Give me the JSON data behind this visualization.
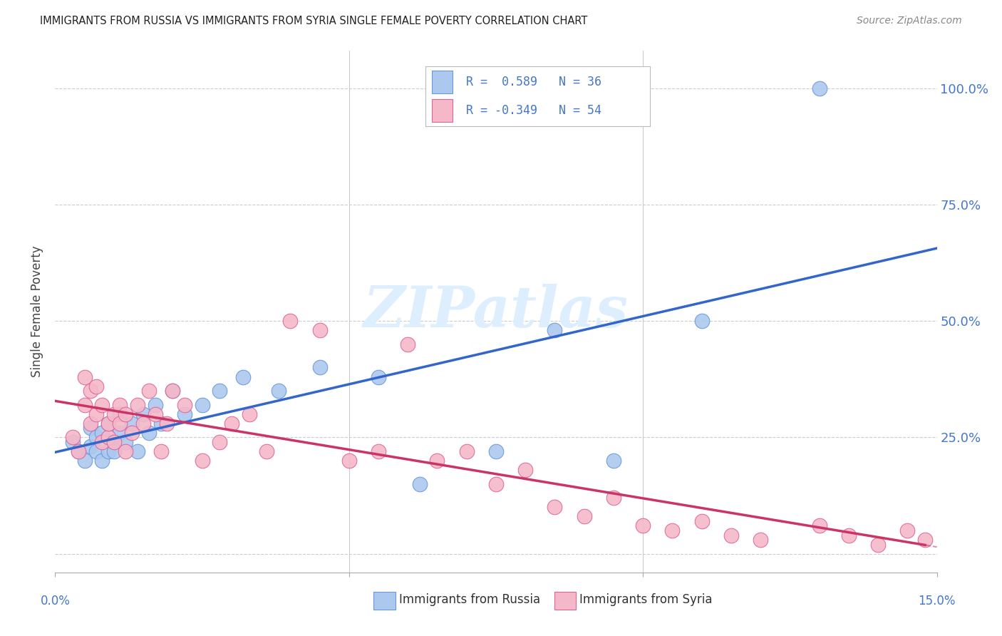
{
  "title": "IMMIGRANTS FROM RUSSIA VS IMMIGRANTS FROM SYRIA SINGLE FEMALE POVERTY CORRELATION CHART",
  "source": "Source: ZipAtlas.com",
  "ylabel": "Single Female Poverty",
  "x_range": [
    0.0,
    0.15
  ],
  "y_range": [
    -0.04,
    1.08
  ],
  "russia_R": 0.589,
  "russia_N": 36,
  "syria_R": -0.349,
  "syria_N": 54,
  "russia_color": "#adc8ee",
  "russia_line_color": "#3366cc",
  "russia_edge_color": "#6699dd",
  "syria_color": "#f5b8c8",
  "syria_line_color": "#cc3366",
  "syria_edge_color": "#dd6699",
  "watermark_color": "#ddeeff",
  "background_color": "#ffffff",
  "grid_color": "#cccccc",
  "label_color": "#4477cc",
  "russia_x": [
    0.003,
    0.004,
    0.005,
    0.006,
    0.006,
    0.007,
    0.007,
    0.008,
    0.008,
    0.009,
    0.009,
    0.01,
    0.01,
    0.011,
    0.011,
    0.012,
    0.013,
    0.014,
    0.015,
    0.016,
    0.017,
    0.018,
    0.02,
    0.022,
    0.025,
    0.028,
    0.032,
    0.038,
    0.045,
    0.055,
    0.062,
    0.075,
    0.085,
    0.095,
    0.11,
    0.13
  ],
  "russia_y": [
    0.24,
    0.22,
    0.2,
    0.23,
    0.27,
    0.22,
    0.25,
    0.2,
    0.26,
    0.22,
    0.28,
    0.24,
    0.22,
    0.26,
    0.3,
    0.24,
    0.28,
    0.22,
    0.3,
    0.26,
    0.32,
    0.28,
    0.35,
    0.3,
    0.32,
    0.35,
    0.38,
    0.35,
    0.4,
    0.38,
    0.15,
    0.22,
    0.48,
    0.2,
    0.5,
    1.0
  ],
  "syria_x": [
    0.003,
    0.004,
    0.005,
    0.005,
    0.006,
    0.006,
    0.007,
    0.007,
    0.008,
    0.008,
    0.009,
    0.009,
    0.01,
    0.01,
    0.011,
    0.011,
    0.012,
    0.012,
    0.013,
    0.014,
    0.015,
    0.016,
    0.017,
    0.018,
    0.019,
    0.02,
    0.022,
    0.025,
    0.028,
    0.03,
    0.033,
    0.036,
    0.04,
    0.045,
    0.05,
    0.055,
    0.06,
    0.065,
    0.07,
    0.075,
    0.08,
    0.085,
    0.09,
    0.095,
    0.1,
    0.105,
    0.11,
    0.115,
    0.12,
    0.13,
    0.135,
    0.14,
    0.145,
    0.148
  ],
  "syria_y": [
    0.25,
    0.22,
    0.38,
    0.32,
    0.35,
    0.28,
    0.3,
    0.36,
    0.24,
    0.32,
    0.25,
    0.28,
    0.3,
    0.24,
    0.32,
    0.28,
    0.22,
    0.3,
    0.26,
    0.32,
    0.28,
    0.35,
    0.3,
    0.22,
    0.28,
    0.35,
    0.32,
    0.2,
    0.24,
    0.28,
    0.3,
    0.22,
    0.5,
    0.48,
    0.2,
    0.22,
    0.45,
    0.2,
    0.22,
    0.15,
    0.18,
    0.1,
    0.08,
    0.12,
    0.06,
    0.05,
    0.07,
    0.04,
    0.03,
    0.06,
    0.04,
    0.02,
    0.05,
    0.03
  ],
  "y_ticks": [
    0.0,
    0.25,
    0.5,
    0.75,
    1.0
  ],
  "x_ticks": [
    0.0,
    0.05,
    0.1,
    0.15
  ],
  "legend_russia": "R =  0.589   N = 36",
  "legend_syria": "R = -0.349   N = 54",
  "bottom_legend_russia": "Immigrants from Russia",
  "bottom_legend_syria": "Immigrants from Syria"
}
